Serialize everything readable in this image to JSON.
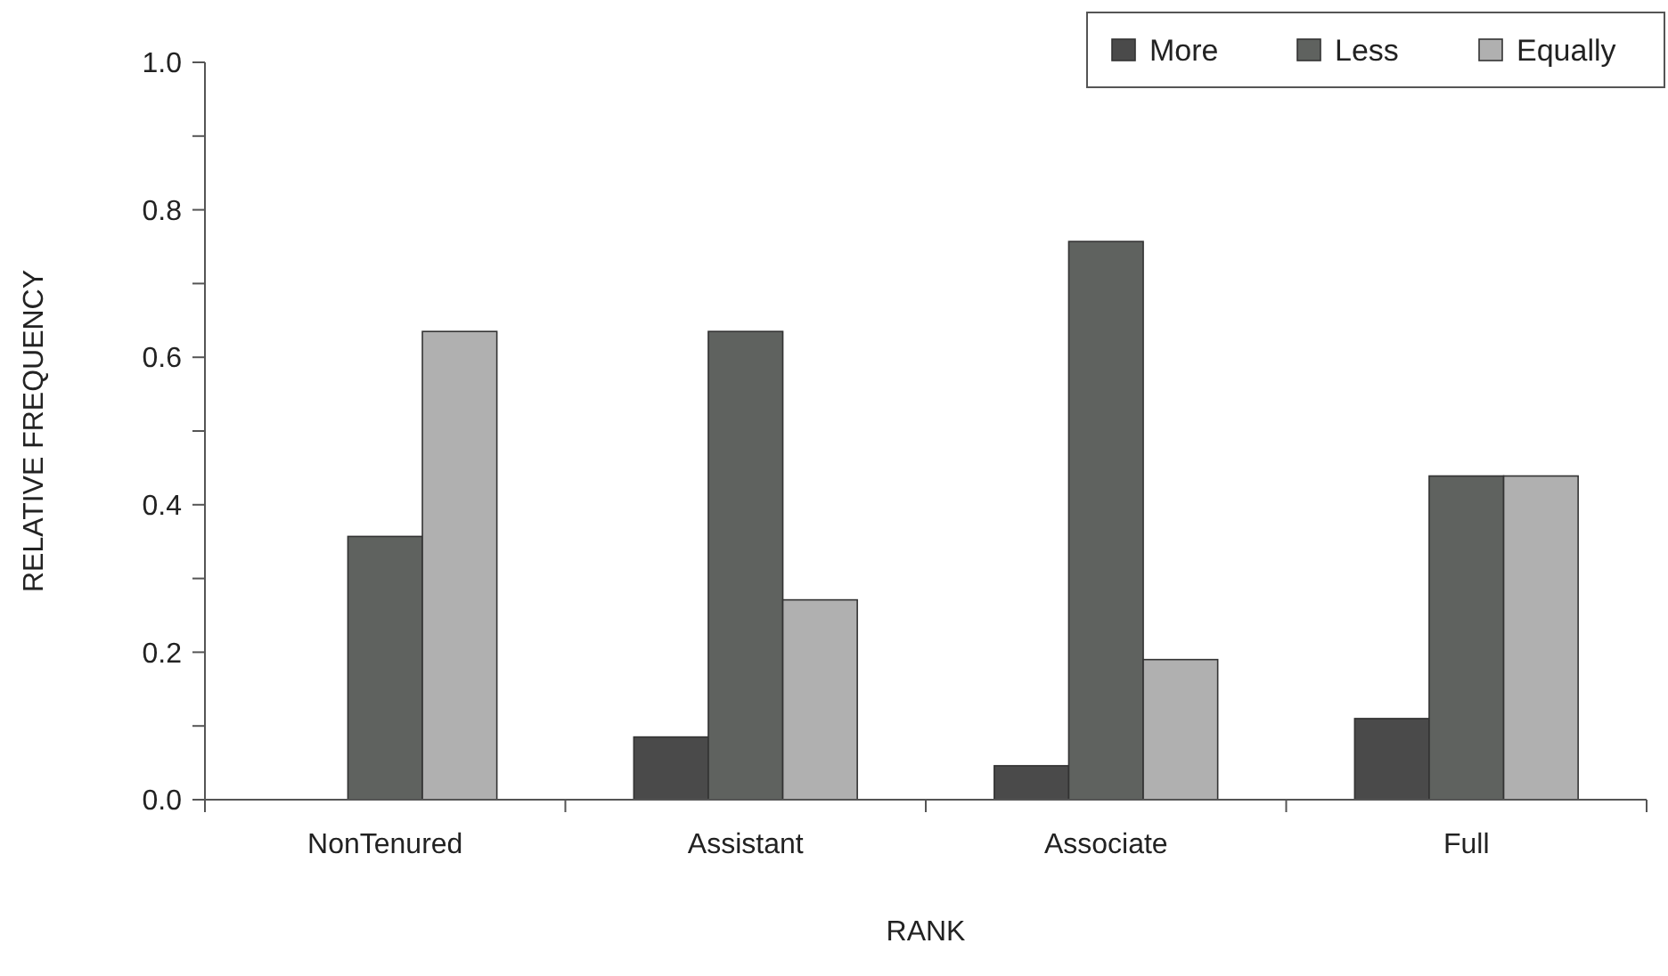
{
  "chart_data": {
    "type": "bar",
    "xlabel": "RANK",
    "ylabel": "RELATIVE FREQUENCY",
    "categories": [
      "NonTenured",
      "Assistant",
      "Associate",
      "Full"
    ],
    "series": [
      {
        "name": "More",
        "color": "#4a4a4a",
        "values": [
          0,
          0.085,
          0.046,
          0.11
        ]
      },
      {
        "name": "Less",
        "color": "#5f625f",
        "values": [
          0.357,
          0.635,
          0.757,
          0.439
        ]
      },
      {
        "name": "Equally",
        "color": "#b0b0b0",
        "values": [
          0.635,
          0.271,
          0.19,
          0.439
        ]
      }
    ],
    "ylim": [
      0,
      1
    ],
    "yticks": [
      {
        "value": 0,
        "label": "0.0"
      },
      {
        "value": 0.1,
        "label": null
      },
      {
        "value": 0.2,
        "label": "0.2"
      },
      {
        "value": 0.3,
        "label": null
      },
      {
        "value": 0.4,
        "label": "0.4"
      },
      {
        "value": 0.5,
        "label": null
      },
      {
        "value": 0.6,
        "label": "0.6"
      },
      {
        "value": 0.7,
        "label": null
      },
      {
        "value": 0.8,
        "label": "0.8"
      },
      {
        "value": 0.9,
        "label": null
      },
      {
        "value": 1,
        "label": "1.0"
      }
    ],
    "grid": false,
    "legend": "top right"
  }
}
